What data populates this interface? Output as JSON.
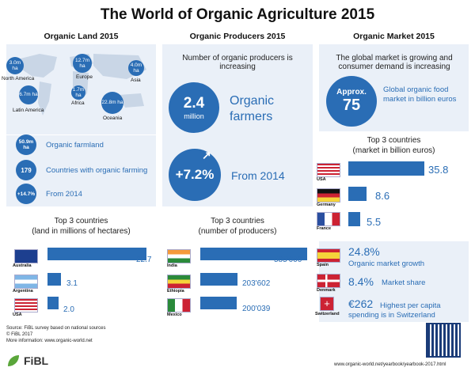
{
  "title": "The World of Organic Agriculture 2015",
  "columns": {
    "land": {
      "heading": "Organic Land 2015",
      "map_regions": [
        {
          "name": "North America",
          "value": "3.0m ha"
        },
        {
          "name": "Europe",
          "value": "12.7m ha"
        },
        {
          "name": "Asia",
          "value": "4.0m ha"
        },
        {
          "name": "Latin America",
          "value": "6.7m ha"
        },
        {
          "name": "Africa",
          "value": "1.7m ha"
        },
        {
          "name": "Oceania",
          "value": "22.8m ha"
        }
      ],
      "stats": [
        {
          "badge": "50.9m ha",
          "text": "Organic farmland"
        },
        {
          "badge": "179",
          "text": "Countries with organic farming"
        },
        {
          "badge": "+14.7%",
          "text": "From 2014"
        }
      ],
      "top_title": "Top 3 countries",
      "top_subtitle": "(land in millions of hectares)",
      "top": [
        {
          "country": "Australia",
          "value": "22.7"
        },
        {
          "country": "Argentina",
          "value": "3.1"
        },
        {
          "country": "USA",
          "value": "2.0"
        }
      ]
    },
    "producers": {
      "heading": "Organic Producers 2015",
      "intro": "Number of organic producers is increasing",
      "big_value": "2.4",
      "big_unit": "million",
      "big_label": "Organic farmers",
      "growth_value": "+7.2%",
      "growth_label": "From 2014",
      "top_title": "Top 3 countries",
      "top_subtitle": "(number of producers)",
      "top": [
        {
          "country": "India",
          "value": "585'000"
        },
        {
          "country": "Ethiopia",
          "value": "203'602"
        },
        {
          "country": "Mexico",
          "value": "200'039"
        }
      ]
    },
    "market": {
      "heading": "Organic Market 2015",
      "intro": "The global market is growing and consumer demand is increasing",
      "approx_label": "Approx.",
      "approx_value": "75",
      "approx_text": "Global organic food market in billion euros",
      "top_title": "Top 3 countries",
      "top_subtitle": "(market in billion euros)",
      "top": [
        {
          "country": "USA",
          "value": "35.8"
        },
        {
          "country": "Germany",
          "value": "8.6"
        },
        {
          "country": "France",
          "value": "5.5"
        }
      ],
      "facts": [
        {
          "country": "Spain",
          "value": "24.8%",
          "text": "Organic market growth"
        },
        {
          "country": "Denmark",
          "value": "8.4%",
          "text": "Market share"
        },
        {
          "country": "Switzerland",
          "value": "€262",
          "text": "Highest per capita spending is in Switzerland"
        }
      ]
    }
  },
  "chart_data": [
    {
      "type": "bar",
      "title": "Top 3 countries (land in millions of hectares)",
      "categories": [
        "Australia",
        "Argentina",
        "USA"
      ],
      "values": [
        22.7,
        3.1,
        2.0
      ]
    },
    {
      "type": "bar",
      "title": "Top 3 countries (number of producers)",
      "categories": [
        "India",
        "Ethiopia",
        "Mexico"
      ],
      "values": [
        585000,
        203602,
        200039
      ]
    },
    {
      "type": "bar",
      "title": "Top 3 countries (market in billion euros)",
      "categories": [
        "USA",
        "Germany",
        "France"
      ],
      "values": [
        35.8,
        8.6,
        5.5
      ]
    }
  ],
  "footer": {
    "source": "Source: FiBL survey based on national sources",
    "copyright": "© FiBL 2017",
    "more": "More information: www.organic-world.net",
    "logo": "FiBL",
    "url": "www.organic-world.net/yearbook/yearbook-2017.html"
  },
  "colors": {
    "accent": "#2a6db5",
    "panel": "#eaf0f8"
  }
}
